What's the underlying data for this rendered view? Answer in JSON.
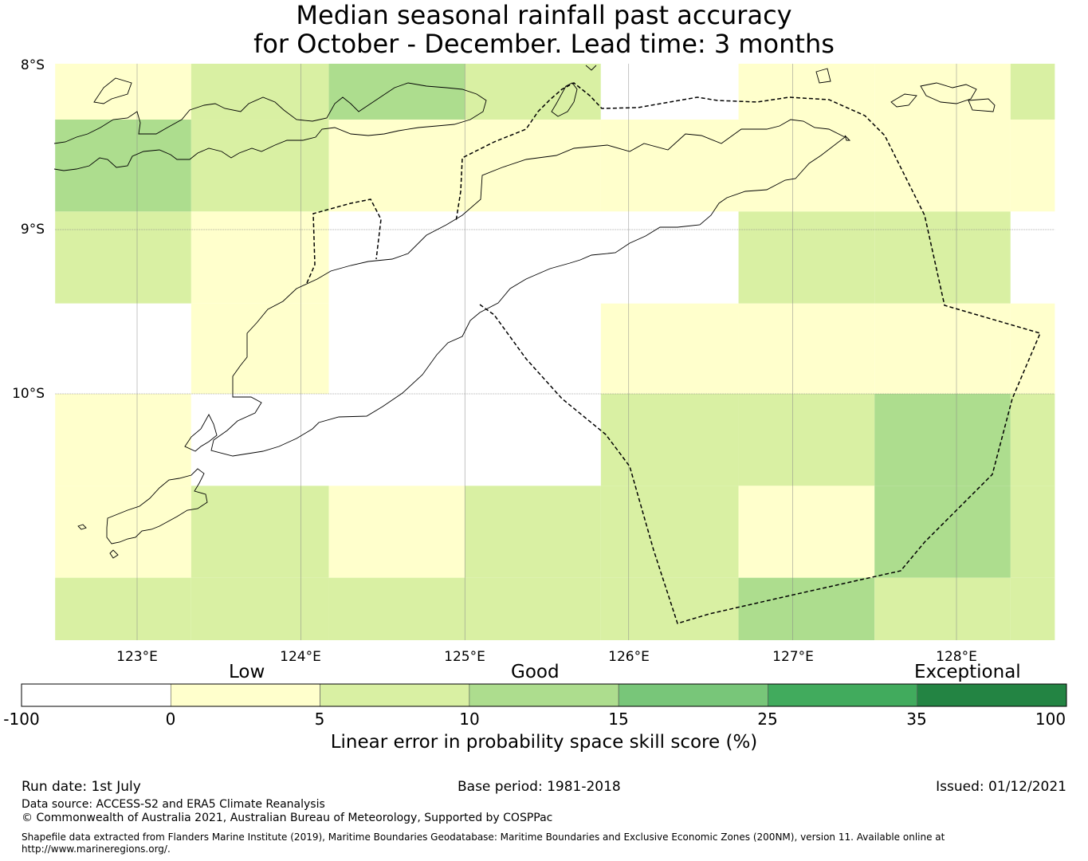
{
  "title_line1": "Median seasonal rainfall past accuracy",
  "title_line2": "for October - December. Lead time: 3 months",
  "map": {
    "lat_labels": [
      "8°S",
      "9°S",
      "10°S"
    ],
    "lon_labels": [
      "123°E",
      "124°E",
      "125°E",
      "126°E",
      "127°E",
      "128°E"
    ],
    "lon_edges": [
      122.5,
      123.33,
      124.17,
      125.0,
      125.83,
      126.67,
      127.5,
      128.33,
      128.6
    ],
    "lat_edges": [
      -7.99,
      -8.33,
      -8.89,
      -9.45,
      -10.0,
      -10.56,
      -11.12,
      -11.5
    ],
    "cell_scores": [
      [
        3,
        8,
        12,
        8,
        -10,
        3,
        3,
        7
      ],
      [
        10,
        7,
        3,
        3,
        3,
        3,
        3,
        3
      ],
      [
        7,
        3,
        -10,
        -10,
        -10,
        7,
        7,
        -10
      ],
      [
        -10,
        3,
        -10,
        -10,
        3,
        3,
        3,
        3
      ],
      [
        3,
        -10,
        -10,
        -10,
        7,
        7,
        10,
        7
      ],
      [
        3,
        7,
        3,
        7,
        7,
        3,
        10,
        7
      ],
      [
        7,
        7,
        7,
        7,
        7,
        10,
        7,
        7
      ]
    ],
    "colors": {
      "land_outline": "#000000",
      "eez_boundary": "#000000",
      "grid": "#888888"
    }
  },
  "colorbar": {
    "categories": [
      "Low",
      "Good",
      "Exceptional"
    ],
    "ticks": [
      "-100",
      "0",
      "5",
      "10",
      "15",
      "25",
      "35",
      "100"
    ],
    "bins": [
      {
        "from": -100,
        "to": 0,
        "color": "#ffffff"
      },
      {
        "from": 0,
        "to": 5,
        "color": "#ffffcc"
      },
      {
        "from": 5,
        "to": 10,
        "color": "#d9f0a3"
      },
      {
        "from": 10,
        "to": 15,
        "color": "#addd8e"
      },
      {
        "from": 15,
        "to": 25,
        "color": "#78c679"
      },
      {
        "from": 25,
        "to": 35,
        "color": "#41ab5d"
      },
      {
        "from": 35,
        "to": 100,
        "color": "#238443"
      }
    ],
    "label": "Linear error in probability space skill score (%)"
  },
  "footer": {
    "run_date": "Run date: 1st July",
    "base_period": "Base period: 1981-2018",
    "issued": "Issued: 01/12/2021",
    "data_source": "Data source: ACCESS-S2 and ERA5 Climate Reanalysis",
    "copyright": "© Commonwealth of Australia 2021, Australian Bureau of Meteorology, Supported by COSPPac",
    "shapefile_line1": "Shapefile data extracted from Flanders Marine Institute (2019), Maritime Boundaries Geodatabase: Maritime Boundaries and Exclusive Economic Zones (200NM), version 11. Available online at",
    "shapefile_line2": "http://www.marineregions.org/."
  }
}
